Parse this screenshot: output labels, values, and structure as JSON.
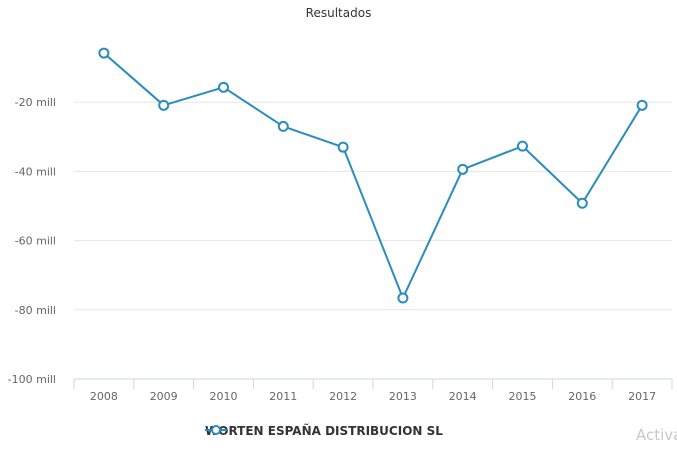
{
  "chart_data": {
    "type": "line",
    "title": "Resultados",
    "xlabel": "",
    "ylabel": "",
    "categories": [
      "2008",
      "2009",
      "2010",
      "2011",
      "2012",
      "2013",
      "2014",
      "2015",
      "2016",
      "2017"
    ],
    "series": [
      {
        "name": "WORTEN ESPAÑA DISTRIBUCION SL",
        "color": "#2b8cbe",
        "values": [
          -5.8,
          -20.9,
          -15.7,
          -27.0,
          -33.0,
          -76.6,
          -39.4,
          -32.7,
          -49.2,
          -20.9
        ],
        "unit": "mill"
      }
    ],
    "yticks": [
      "-20 mill",
      "-40 mill",
      "-60 mill",
      "-80 mill",
      "-100 mill"
    ],
    "ylim": [
      -100,
      0
    ],
    "grid": true,
    "legend_position": "bottom"
  },
  "legend": {
    "label": "WORTEN ESPAÑA DISTRIBUCION SL"
  },
  "watermark": "Activa"
}
